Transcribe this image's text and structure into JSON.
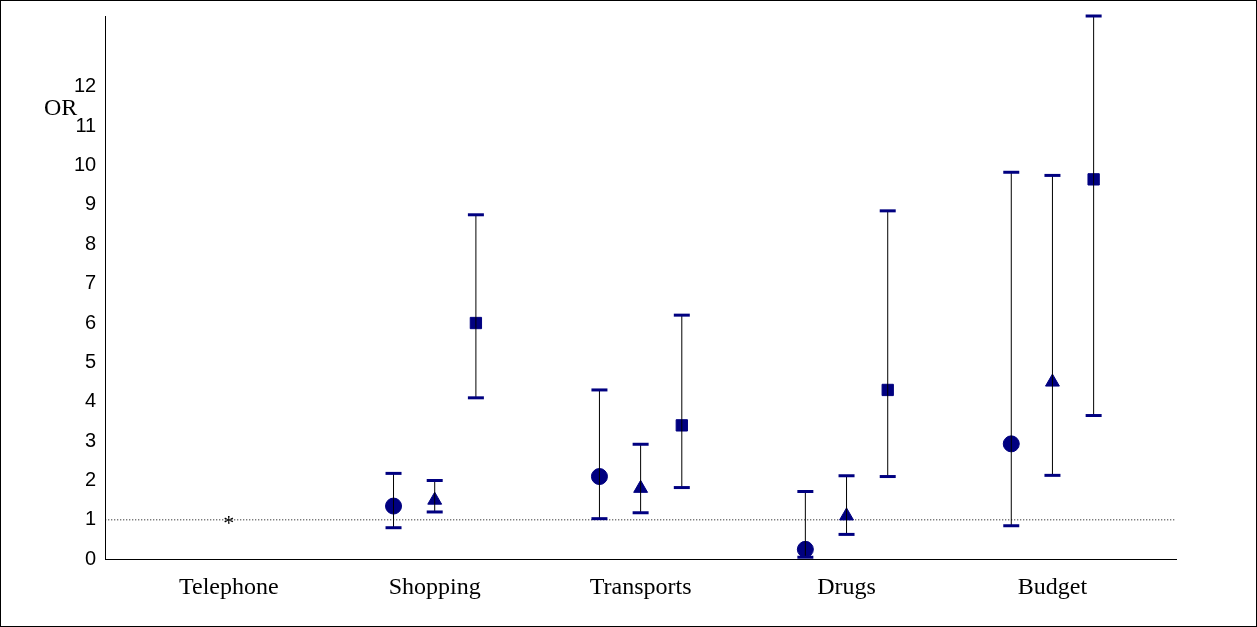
{
  "chart_data": {
    "type": "scatter",
    "ylabel": "OR",
    "categories": [
      "Telephone",
      "Shopping",
      "Transports",
      "Drugs",
      "Budget"
    ],
    "ylim": [
      0,
      13.8
    ],
    "yticks": [
      0,
      1,
      2,
      3,
      4,
      5,
      6,
      7,
      8,
      9,
      10,
      11,
      12
    ],
    "grid": false,
    "legend": false,
    "series": [
      {
        "marker": "circle",
        "color": "#000080",
        "x": [
          "Telephone",
          "Shopping",
          "Transports",
          "Drugs",
          "Budget"
        ],
        "values": [
          null,
          1.35,
          2.1,
          0.25,
          2.93
        ],
        "errors": [
          null,
          [
            0.8,
            2.18
          ],
          [
            1.03,
            4.3
          ],
          [
            0.05,
            1.72
          ],
          [
            0.85,
            9.83
          ]
        ]
      },
      {
        "marker": "triangle",
        "color": "#000080",
        "x": [
          "Telephone",
          "Shopping",
          "Transports",
          "Drugs",
          "Budget"
        ],
        "values": [
          null,
          1.5,
          1.8,
          1.1,
          4.5
        ],
        "errors": [
          null,
          [
            1.2,
            2.0
          ],
          [
            1.18,
            2.92
          ],
          [
            0.63,
            2.12
          ],
          [
            2.13,
            9.75
          ]
        ]
      },
      {
        "marker": "square",
        "color": "#000080",
        "x": [
          "Telephone",
          "Shopping",
          "Transports",
          "Drugs",
          "Budget"
        ],
        "values": [
          null,
          6.0,
          3.4,
          4.3,
          9.65
        ],
        "errors": [
          null,
          [
            4.1,
            8.75
          ],
          [
            1.82,
            6.2
          ],
          [
            2.1,
            8.85
          ],
          [
            3.65,
            13.8
          ]
        ]
      }
    ],
    "ref_lines": [
      {
        "axis": "y",
        "value": 1,
        "color": "#000000",
        "line_style": "dotted"
      }
    ],
    "annotations": [
      {
        "text": "*",
        "x": "Telephone",
        "y": 1
      }
    ]
  }
}
